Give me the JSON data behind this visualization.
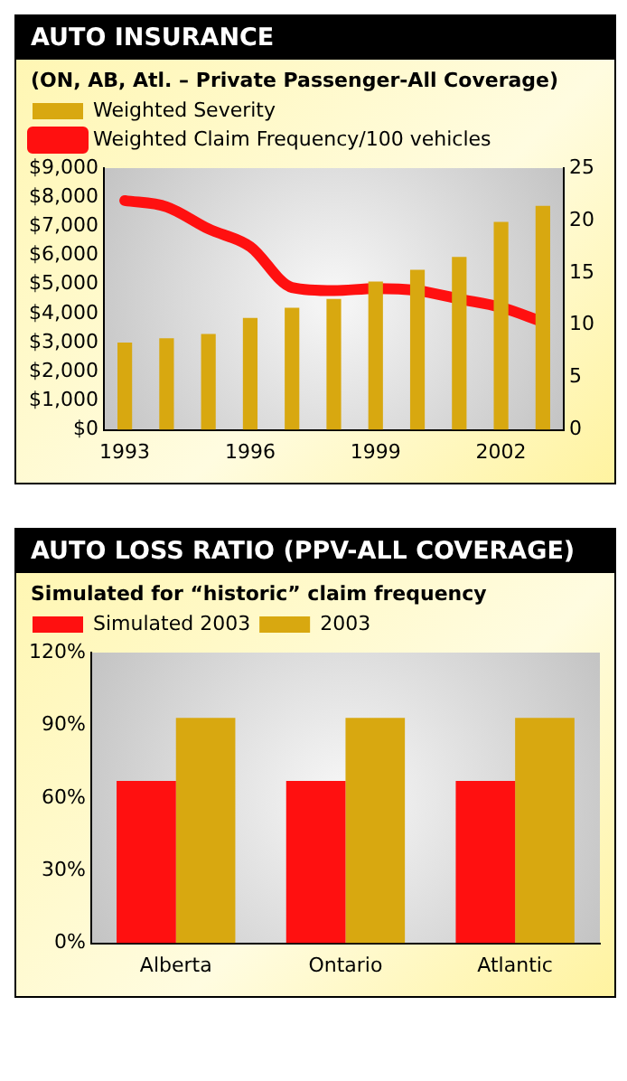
{
  "chart_data": [
    {
      "type": "bar",
      "title": "AUTO INSURANCE",
      "subtitle": "(ON, AB, Atl. – Private Passenger-All Coverage)",
      "categories": [
        "1993",
        null,
        null,
        "1996",
        null,
        null,
        "1999",
        null,
        null,
        "2002",
        null
      ],
      "series": [
        {
          "name": "Weighted Severity",
          "color": "#d8a810",
          "values": [
            3000,
            3150,
            3300,
            3850,
            4200,
            4500,
            5100,
            5500,
            5950,
            7150,
            7700
          ]
        },
        {
          "name": "Weighted Claim Frequency/100 vehicles",
          "type": "line",
          "axis": "y2",
          "color": "#ff1010",
          "values": [
            21.9,
            21.3,
            19.2,
            17.5,
            13.6,
            13.3,
            13.5,
            13.3,
            12.5,
            11.7,
            10.3
          ]
        }
      ],
      "ylim": [
        0,
        9000
      ],
      "yticks": [
        {
          "value": 0,
          "label": "$0"
        },
        {
          "value": 1000,
          "label": "$1,000"
        },
        {
          "value": 2000,
          "label": "$2,000"
        },
        {
          "value": 3000,
          "label": "$3,000"
        },
        {
          "value": 4000,
          "label": "$4,000"
        },
        {
          "value": 5000,
          "label": "$5,000"
        },
        {
          "value": 6000,
          "label": "$6,000"
        },
        {
          "value": 7000,
          "label": "$7,000"
        },
        {
          "value": 8000,
          "label": "$8,000"
        },
        {
          "value": 9000,
          "label": "$9,000"
        }
      ],
      "y2lim": [
        0,
        25
      ],
      "y2ticks": [
        0,
        5,
        10,
        15,
        20,
        25
      ],
      "legend": "top left"
    },
    {
      "type": "bar",
      "title": "AUTO LOSS RATIO (PPV-ALL COVERAGE)",
      "subtitle": "Simulated for “historic” claim frequency",
      "categories": [
        "Alberta",
        "Ontario",
        "Atlantic"
      ],
      "series": [
        {
          "name": "Simulated 2003",
          "color": "#ff1010",
          "values": [
            67,
            67,
            67
          ]
        },
        {
          "name": "2003",
          "color": "#d8a810",
          "values": [
            93,
            93,
            93
          ]
        }
      ],
      "ylim": [
        0,
        120
      ],
      "yticks": [
        {
          "value": 0,
          "label": "0%"
        },
        {
          "value": 30,
          "label": "30%"
        },
        {
          "value": 60,
          "label": "60%"
        },
        {
          "value": 90,
          "label": "90%"
        },
        {
          "value": 120,
          "label": "120%"
        }
      ],
      "legend": "top left"
    }
  ]
}
